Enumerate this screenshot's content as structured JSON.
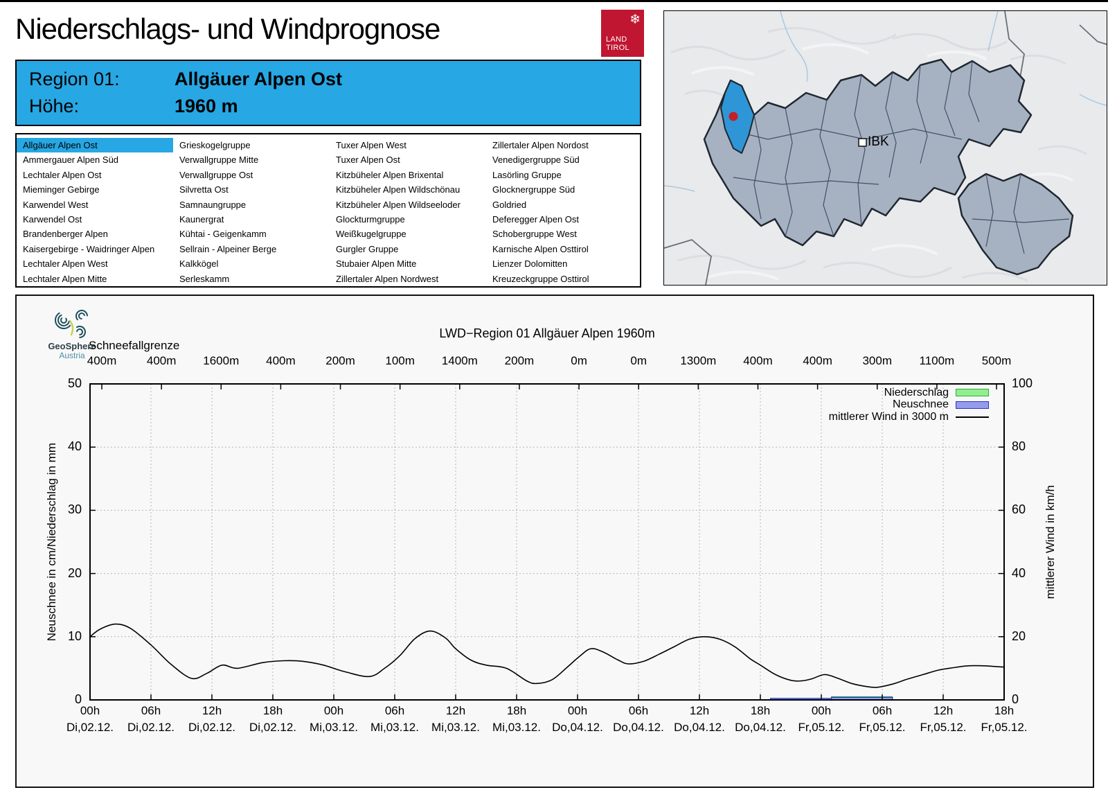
{
  "header": {
    "title": "Niederschlags- und Windprognose",
    "logo": {
      "snowflake": "❄",
      "line1": "LAND",
      "line2": "TIROL"
    }
  },
  "region_box": {
    "rows": [
      {
        "label": "Region 01:",
        "value": "Allgäuer Alpen Ost"
      },
      {
        "label": "Höhe:",
        "value": "1960 m"
      }
    ]
  },
  "region_list": {
    "selected": "Allgäuer Alpen Ost",
    "columns": [
      [
        "Allgäuer Alpen Ost",
        "Ammergauer Alpen Süd",
        "Lechtaler Alpen Ost",
        "Mieminger Gebirge",
        "Karwendel West",
        "Karwendel Ost",
        "Brandenberger Alpen",
        "Kaisergebirge - Waidringer Alpen",
        "Lechtaler Alpen West",
        "Lechtaler Alpen Mitte"
      ],
      [
        "Grieskogelgruppe",
        "Verwallgruppe Mitte",
        "Verwallgruppe Ost",
        "Silvretta Ost",
        "Samnaungruppe",
        "Kaunergrat",
        "Kühtai - Geigenkamm",
        "Sellrain - Alpeiner Berge",
        "Kalkkögel",
        "Serleskamm"
      ],
      [
        "Tuxer Alpen West",
        "Tuxer Alpen Ost",
        "Kitzbüheler Alpen Brixental",
        "Kitzbüheler Alpen Wildschönau",
        "Kitzbüheler Alpen Wildseeloder",
        "Glockturmgruppe",
        "Weißkugelgruppe",
        "Gurgler Gruppe",
        "Stubaier Alpen Mitte",
        "Zillertaler Alpen Nordwest"
      ],
      [
        "Zillertaler Alpen Nordost",
        "Venedigergruppe Süd",
        "Lasörling Gruppe",
        "Glocknergruppe Süd",
        "Goldried",
        "Deferegger Alpen Ost",
        "Schobergruppe West",
        "Karnische Alpen Osttirol",
        "Lienzer Dolomitten",
        "Kreuzeckgruppe Osttirol"
      ]
    ]
  },
  "map": {
    "ibk_label": "IBK",
    "highlight_color": "#2e96d6",
    "region_fill": "#a6b2c2",
    "marker_color": "#c22026"
  },
  "branding": {
    "geosphere_line1": "GeoSphere",
    "geosphere_line2": "Austria"
  },
  "chart_data": {
    "type": "line+bar",
    "title": "LWD−Region 01 Allgäuer Alpen 1960m",
    "x2_label": "Schneefallgrenze",
    "x2_ticks": [
      "400m",
      "400m",
      "1600m",
      "400m",
      "200m",
      "100m",
      "1400m",
      "200m",
      "0m",
      "0m",
      "1300m",
      "400m",
      "400m",
      "300m",
      "1100m",
      "500m"
    ],
    "ylabel_left": "Neuschnee in cm/Niederschlag in mm",
    "ylabel_right": "mittlerer Wind in km/h",
    "ylim_left": [
      0,
      50
    ],
    "ylim_right": [
      0,
      100
    ],
    "yticks_left": [
      0,
      10,
      20,
      30,
      40,
      50
    ],
    "yticks_right": [
      0,
      20,
      40,
      60,
      80,
      100
    ],
    "grid": true,
    "legend_position": "top-right",
    "x_hours_range": [
      0,
      90
    ],
    "xticks": [
      {
        "hours": 0,
        "time": "00h",
        "date": "Di,02.12."
      },
      {
        "hours": 6,
        "time": "06h",
        "date": "Di,02.12."
      },
      {
        "hours": 12,
        "time": "12h",
        "date": "Di,02.12."
      },
      {
        "hours": 18,
        "time": "18h",
        "date": "Di,02.12."
      },
      {
        "hours": 24,
        "time": "00h",
        "date": "Mi,03.12."
      },
      {
        "hours": 30,
        "time": "06h",
        "date": "Mi,03.12."
      },
      {
        "hours": 36,
        "time": "12h",
        "date": "Mi,03.12."
      },
      {
        "hours": 42,
        "time": "18h",
        "date": "Mi,03.12."
      },
      {
        "hours": 48,
        "time": "00h",
        "date": "Do,04.12."
      },
      {
        "hours": 54,
        "time": "06h",
        "date": "Do,04.12."
      },
      {
        "hours": 60,
        "time": "12h",
        "date": "Do,04.12."
      },
      {
        "hours": 66,
        "time": "18h",
        "date": "Do,04.12."
      },
      {
        "hours": 72,
        "time": "00h",
        "date": "Fr,05.12."
      },
      {
        "hours": 78,
        "time": "06h",
        "date": "Fr,05.12."
      },
      {
        "hours": 84,
        "time": "12h",
        "date": "Fr,05.12."
      },
      {
        "hours": 90,
        "time": "18h",
        "date": "Fr,05.12."
      }
    ],
    "legend": [
      {
        "label": "Niederschlag",
        "type": "box",
        "fill": "#90ee90",
        "border": "#2fae2f"
      },
      {
        "label": "Neuschnee",
        "type": "box",
        "fill": "#959ceb",
        "border": "#2c34c8"
      },
      {
        "label": "mittlerer Wind in 3000 m",
        "type": "line",
        "color": "#000000"
      }
    ],
    "series": {
      "wind": {
        "name": "mittlerer Wind in 3000 m",
        "unit": "km/h",
        "axis": "right",
        "points": [
          [
            0,
            20
          ],
          [
            1,
            22.4
          ],
          [
            2.5,
            24
          ],
          [
            4,
            22.6
          ],
          [
            6,
            17.4
          ],
          [
            8,
            11.2
          ],
          [
            10,
            6.8
          ],
          [
            11.5,
            8.4
          ],
          [
            13,
            11
          ],
          [
            14.5,
            10
          ],
          [
            17,
            11.8
          ],
          [
            19,
            12.4
          ],
          [
            21,
            12.2
          ],
          [
            23,
            11
          ],
          [
            25,
            9
          ],
          [
            27.5,
            7.4
          ],
          [
            29,
            10
          ],
          [
            30.5,
            14
          ],
          [
            32,
            19.4
          ],
          [
            33.5,
            21.8
          ],
          [
            35,
            19.6
          ],
          [
            36,
            16.2
          ],
          [
            37.5,
            12.6
          ],
          [
            39,
            11
          ],
          [
            41,
            10
          ],
          [
            43,
            6
          ],
          [
            44,
            5.2
          ],
          [
            45.5,
            6.4
          ],
          [
            47,
            10.4
          ],
          [
            48.2,
            13.8
          ],
          [
            49.3,
            16.2
          ],
          [
            50.5,
            15.2
          ],
          [
            52,
            12.6
          ],
          [
            53,
            11.4
          ],
          [
            54.5,
            12.2
          ],
          [
            56,
            14.4
          ],
          [
            57.5,
            16.8
          ],
          [
            59,
            19.2
          ],
          [
            60.5,
            20
          ],
          [
            62,
            19.2
          ],
          [
            63.5,
            16.8
          ],
          [
            65,
            13
          ],
          [
            66,
            11
          ],
          [
            67.5,
            8
          ],
          [
            69,
            6.2
          ],
          [
            70,
            6
          ],
          [
            71,
            6.6
          ],
          [
            72.3,
            8
          ],
          [
            73.5,
            7
          ],
          [
            75,
            5.2
          ],
          [
            76.5,
            4.2
          ],
          [
            77.5,
            4
          ],
          [
            79,
            5
          ],
          [
            80.5,
            6.6
          ],
          [
            82,
            8
          ],
          [
            83.5,
            9.4
          ],
          [
            85,
            10.2
          ],
          [
            86.5,
            10.8
          ],
          [
            88,
            10.8
          ],
          [
            89,
            10.6
          ],
          [
            90,
            10.4
          ]
        ]
      },
      "niederschlag": {
        "name": "Niederschlag",
        "unit": "mm",
        "axis": "left",
        "bars": [
          {
            "from_h": 73,
            "to_h": 79,
            "value": 0.5
          }
        ]
      },
      "neuschnee": {
        "name": "Neuschnee",
        "unit": "cm",
        "axis": "left",
        "bars": [
          {
            "from_h": 67,
            "to_h": 73,
            "value": 0.25
          },
          {
            "from_h": 73,
            "to_h": 79,
            "value": 0.4
          }
        ]
      }
    }
  }
}
